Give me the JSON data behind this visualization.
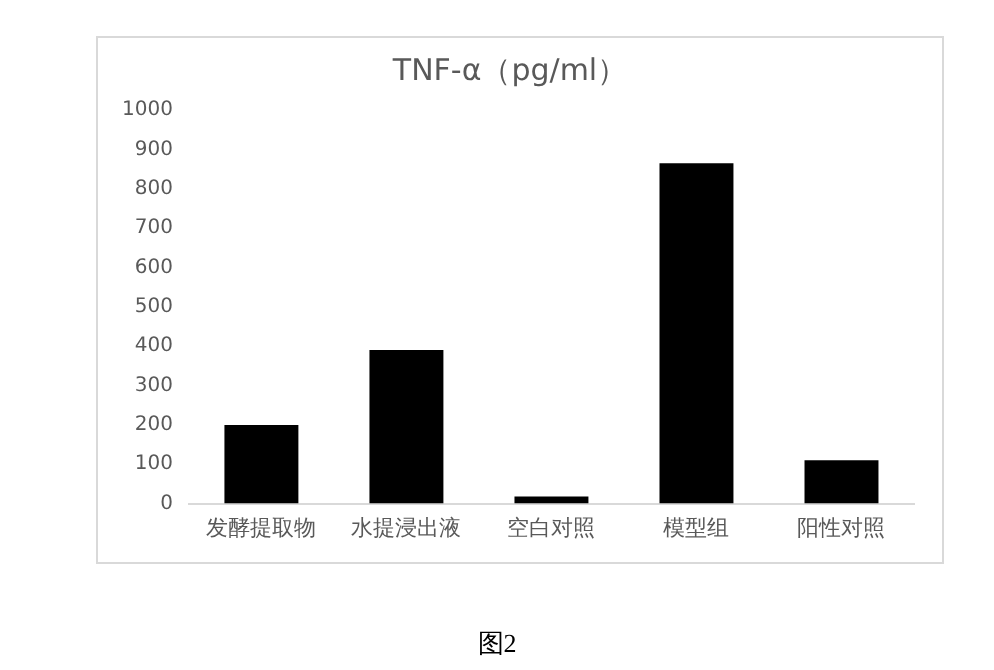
{
  "chart_data": {
    "type": "bar",
    "title": "TNF-α（pg/ml）",
    "categories": [
      "发酵提取物",
      "水提浸出液",
      "空白对照",
      "模型组",
      "阳性对照"
    ],
    "values": [
      200,
      390,
      18,
      865,
      110
    ],
    "color": "#000000",
    "ylim": [
      0,
      1000
    ],
    "yticks": [
      0,
      100,
      200,
      300,
      400,
      500,
      600,
      700,
      800,
      900,
      1000
    ],
    "grid": false,
    "legend": false,
    "annotations": [
      "图2"
    ]
  }
}
